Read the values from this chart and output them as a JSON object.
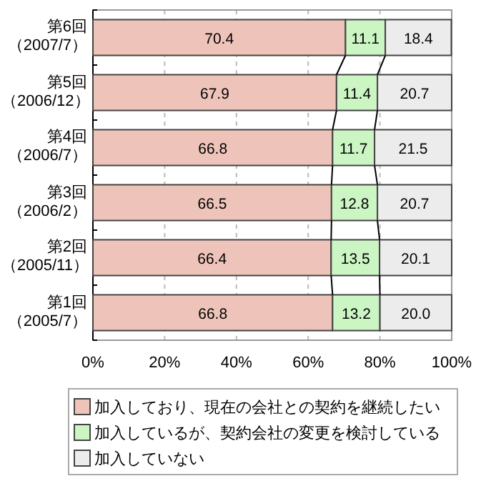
{
  "chart_data": {
    "type": "bar",
    "orientation": "horizontal",
    "stacked": true,
    "categories": [
      "第6回（2007/7）",
      "第5回（2006/12）",
      "第4回（2006/7）",
      "第3回（2006/2）",
      "第2回（2005/11）",
      "第1回（2005/7）"
    ],
    "series": [
      {
        "name": "加入しており、現在の会社との契約を継続したい",
        "color": "#eec4ba",
        "values": [
          70.4,
          67.9,
          66.8,
          66.5,
          66.4,
          66.8
        ],
        "value_labels": [
          "70.4",
          "67.9",
          "66.8",
          "66.5",
          "66.4",
          "66.8"
        ]
      },
      {
        "name": "加入しているが、契約会社の変更を検討している",
        "color": "#ccf5c4",
        "values": [
          11.1,
          11.4,
          11.7,
          12.8,
          13.5,
          13.2
        ],
        "value_labels": [
          "11.1",
          "11.4",
          "11.7",
          "12.8",
          "13.5",
          "13.2"
        ]
      },
      {
        "name": "加入していない",
        "color": "#ececec",
        "values": [
          18.4,
          20.7,
          21.5,
          20.7,
          20.1,
          20.0
        ],
        "value_labels": [
          "18.4",
          "20.7",
          "21.5",
          "20.7",
          "20.1",
          "20.0"
        ]
      }
    ],
    "xlim": [
      0,
      100
    ],
    "xticks": [
      {
        "value": 0,
        "label": "0%"
      },
      {
        "value": 20,
        "label": "20%"
      },
      {
        "value": 40,
        "label": "40%"
      },
      {
        "value": 60,
        "label": "60%"
      },
      {
        "value": 80,
        "label": "80%"
      },
      {
        "value": 100,
        "label": "100%"
      }
    ],
    "grid": "x",
    "legend": "bottom"
  }
}
